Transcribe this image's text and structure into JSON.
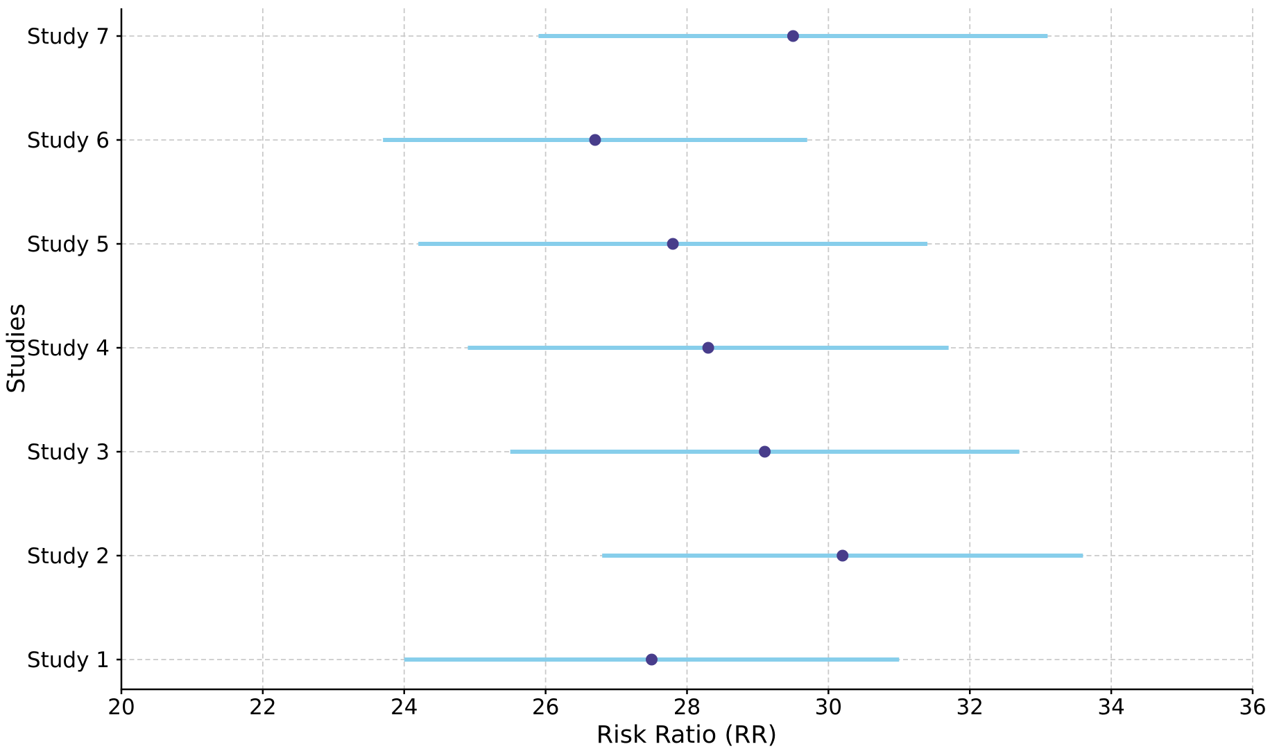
{
  "figure": {
    "background": "#ffffff",
    "title": ""
  },
  "chart_data": {
    "type": "scatter",
    "subtype": "forest-plot-errorbar",
    "orientation": "horizontal",
    "title": "",
    "xlabel": "Risk Ratio (RR)",
    "ylabel": "Studies",
    "xlim": [
      20,
      36
    ],
    "xticks": [
      20,
      22,
      24,
      26,
      28,
      30,
      32,
      34,
      36
    ],
    "grid": true,
    "grid_style": "dashed",
    "legend": "none",
    "categories": [
      "Study 1",
      "Study 2",
      "Study 3",
      "Study 4",
      "Study 5",
      "Study 6",
      "Study 7"
    ],
    "studies": [
      {
        "label": "Study 1",
        "rr": 27.5,
        "ci_low": 24.0,
        "ci_high": 31.0
      },
      {
        "label": "Study 2",
        "rr": 30.2,
        "ci_low": 26.8,
        "ci_high": 33.6
      },
      {
        "label": "Study 3",
        "rr": 29.1,
        "ci_low": 25.5,
        "ci_high": 32.7
      },
      {
        "label": "Study 4",
        "rr": 28.3,
        "ci_low": 24.9,
        "ci_high": 31.7
      },
      {
        "label": "Study 5",
        "rr": 27.8,
        "ci_low": 24.2,
        "ci_high": 31.4
      },
      {
        "label": "Study 6",
        "rr": 26.7,
        "ci_low": 23.7,
        "ci_high": 29.7
      },
      {
        "label": "Study 7",
        "rr": 29.5,
        "ci_low": 25.9,
        "ci_high": 33.1
      }
    ],
    "colors": {
      "ci_line": "#87CEEB",
      "marker": "#483D8B",
      "grid": "#c9c9c9",
      "axis": "#000000",
      "background": "#ffffff"
    }
  }
}
